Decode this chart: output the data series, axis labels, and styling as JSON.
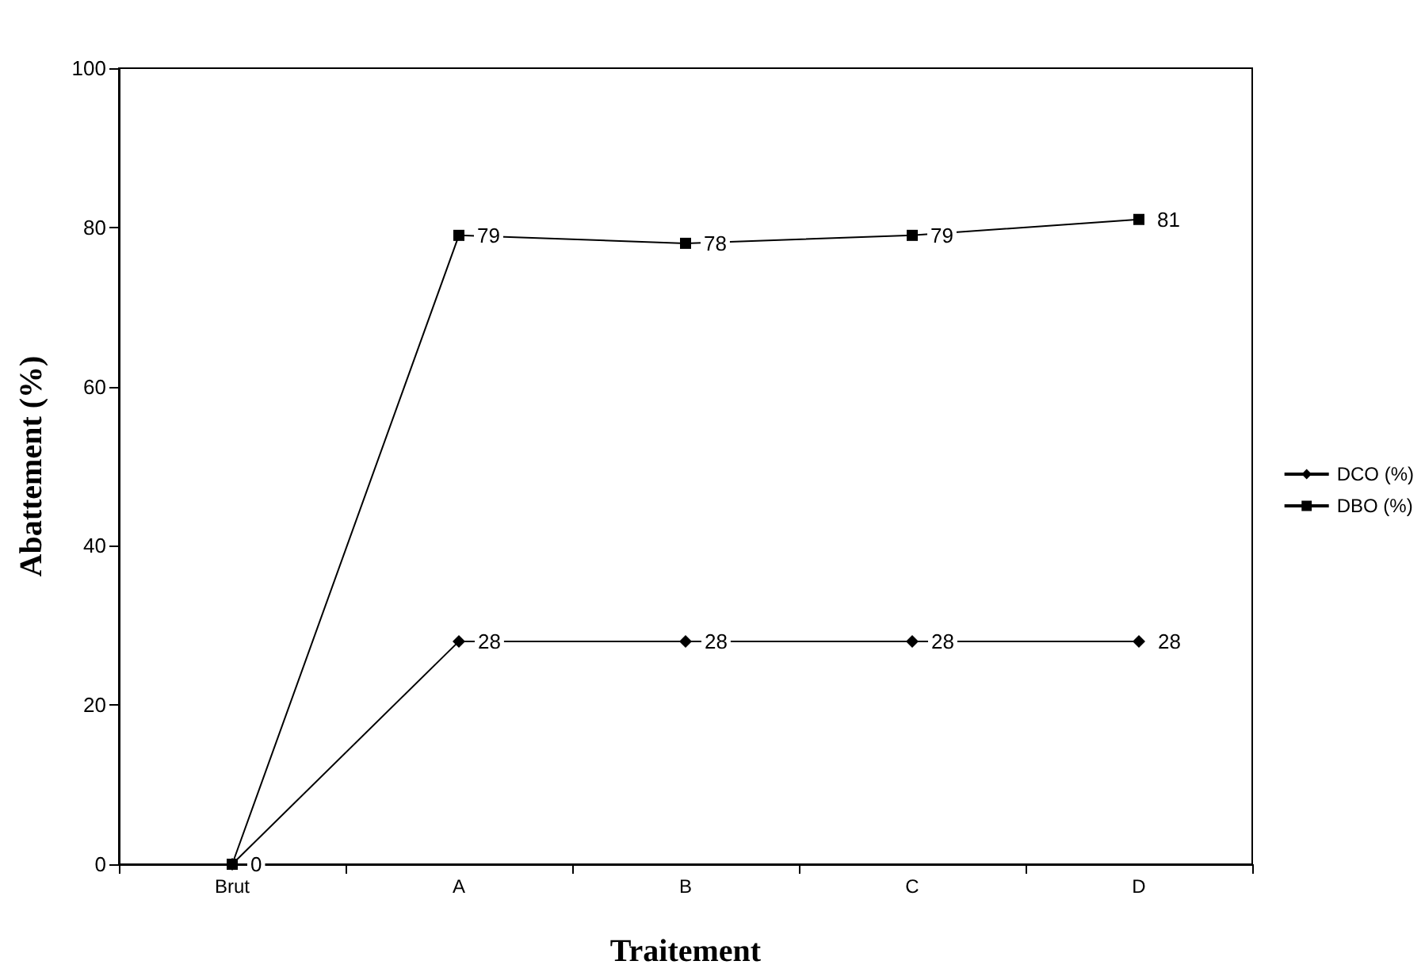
{
  "chart_data": {
    "type": "line",
    "xlabel": "Traitement",
    "ylabel": "Abattement (%)",
    "categories": [
      "Brut",
      "A",
      "B",
      "C",
      "D"
    ],
    "series": [
      {
        "name": "DCO (%)",
        "color": "#000000",
        "marker": "diamond",
        "values": [
          0,
          28,
          28,
          28,
          28
        ],
        "value_labels": [
          null,
          "28",
          "28",
          "28",
          "28"
        ]
      },
      {
        "name": "DBO (%)",
        "color": "#000000",
        "marker": "square",
        "values": [
          0,
          79,
          78,
          79,
          81
        ],
        "value_labels": [
          "0",
          "79",
          "78",
          "79",
          "81"
        ]
      }
    ],
    "ylim": [
      0,
      100
    ],
    "yticks": [
      0,
      20,
      40,
      60,
      80,
      100
    ],
    "grid": false,
    "legend": "right",
    "line_style": "solid"
  }
}
